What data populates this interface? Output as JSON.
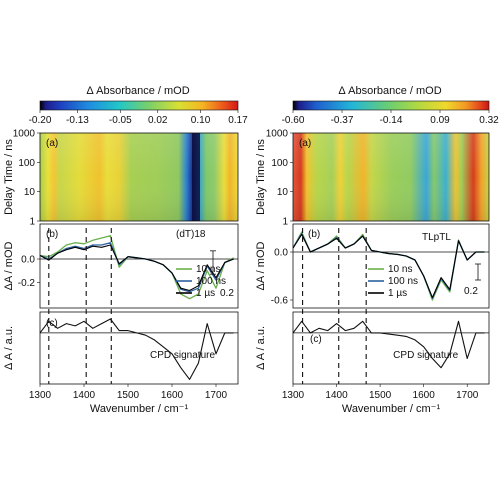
{
  "chart_data": [
    {
      "panel": "left",
      "type": "heatmap",
      "colorbar": {
        "label": "Δ Absorbance / mOD",
        "ticks": [
          "-0.20",
          "-0.13",
          "-0.05",
          "0.02",
          "0.10",
          "0.17"
        ],
        "range": [
          -0.2,
          0.17
        ]
      },
      "heatmap": {
        "label": "(a)",
        "ylabel": "Delay Time / ns",
        "yscale": "log",
        "ylim": [
          1,
          1000
        ],
        "yticks": [
          "1",
          "10",
          "100",
          "1000"
        ],
        "xlim": [
          1300,
          1750
        ]
      },
      "spectra": {
        "type": "line",
        "label": "(b)",
        "annotation": "(dT)18",
        "ylabel": "ΔA / mOD",
        "ylim": [
          -0.42,
          0.3
        ],
        "yticks": [
          "0.0",
          "-0.2"
        ],
        "scalebar": "0.2",
        "x": [
          1300,
          1320,
          1340,
          1360,
          1380,
          1400,
          1420,
          1440,
          1460,
          1480,
          1500,
          1520,
          1540,
          1560,
          1580,
          1600,
          1620,
          1640,
          1660,
          1680,
          1700,
          1720,
          1740
        ],
        "series": [
          {
            "name": "10 ns",
            "values": [
              0.03,
              0.02,
              0.06,
              0.12,
              0.14,
              0.13,
              0.16,
              0.18,
              0.2,
              -0.07,
              0.02,
              0.01,
              0.0,
              -0.02,
              -0.05,
              -0.12,
              -0.3,
              -0.34,
              -0.3,
              -0.1,
              -0.25,
              -0.03,
              0.01
            ]
          },
          {
            "name": "100 ns",
            "values": [
              0.03,
              0.0,
              0.05,
              0.09,
              0.11,
              0.09,
              0.12,
              0.12,
              0.14,
              -0.05,
              0.02,
              0.01,
              0.0,
              -0.02,
              -0.05,
              -0.12,
              -0.26,
              -0.28,
              -0.25,
              -0.06,
              -0.18,
              -0.03,
              0.0
            ]
          },
          {
            "name": "1 µs",
            "values": [
              0.03,
              -0.01,
              0.05,
              0.08,
              0.1,
              0.08,
              0.11,
              0.1,
              0.12,
              -0.04,
              0.02,
              0.01,
              0.0,
              -0.02,
              -0.05,
              -0.12,
              -0.25,
              -0.27,
              -0.23,
              -0.05,
              -0.16,
              -0.03,
              0.0
            ]
          }
        ]
      },
      "cpd": {
        "type": "line",
        "label": "(c)",
        "ylabel": "Δ A / a.u.",
        "annotation": "CPD signature",
        "x": [
          1300,
          1320,
          1340,
          1360,
          1380,
          1400,
          1420,
          1440,
          1460,
          1480,
          1500,
          1520,
          1540,
          1560,
          1580,
          1600,
          1620,
          1640,
          1660,
          1680,
          1700,
          1720,
          1740
        ],
        "values": [
          0.0,
          0.5,
          0.2,
          0.4,
          0.3,
          0.5,
          0.2,
          0.4,
          0.6,
          0.1,
          0.1,
          0.0,
          -0.1,
          -0.3,
          -0.6,
          -0.9,
          -1.5,
          -2.0,
          -1.3,
          0.4,
          -0.9,
          0.0,
          0.0
        ]
      },
      "xlabel": "Wavenumber / cm⁻¹",
      "xticks": [
        "1300",
        "1400",
        "1500",
        "1600",
        "1700"
      ],
      "dashed_lines_x": [
        1320,
        1405,
        1462
      ]
    },
    {
      "panel": "right",
      "type": "heatmap",
      "colorbar": {
        "label": "Δ Absorbance / mOD",
        "ticks": [
          "-0.60",
          "-0.37",
          "-0.14",
          "0.09",
          "0.32"
        ],
        "range": [
          -0.6,
          0.32
        ]
      },
      "heatmap": {
        "label": "(a)",
        "ylabel": "Delay Time / ns",
        "yscale": "log",
        "ylim": [
          1,
          1000
        ],
        "yticks": [
          "1",
          "10",
          "100",
          "1000"
        ],
        "xlim": [
          1300,
          1750
        ]
      },
      "spectra": {
        "type": "line",
        "label": "(b)",
        "annotation": "TLpTL",
        "ylabel": "ΔA / mOD",
        "ylim": [
          -0.7,
          0.35
        ],
        "yticks": [
          "0.0",
          "-0.6"
        ],
        "scalebar": "0.2",
        "x": [
          1300,
          1320,
          1340,
          1360,
          1380,
          1400,
          1420,
          1440,
          1460,
          1480,
          1500,
          1520,
          1540,
          1560,
          1580,
          1600,
          1620,
          1640,
          1660,
          1680,
          1700,
          1720,
          1740
        ],
        "series": [
          {
            "name": "10 ns",
            "values": [
              0.05,
              0.25,
              0.0,
              0.05,
              0.1,
              0.2,
              0.05,
              0.1,
              0.22,
              0.02,
              0.0,
              -0.02,
              -0.03,
              -0.05,
              -0.1,
              -0.3,
              -0.6,
              -0.35,
              -0.5,
              0.15,
              -0.1,
              0.0,
              0.0
            ]
          },
          {
            "name": "100 ns",
            "values": [
              0.05,
              0.23,
              0.0,
              0.05,
              0.1,
              0.18,
              0.05,
              0.1,
              0.2,
              0.02,
              0.0,
              -0.02,
              -0.03,
              -0.05,
              -0.1,
              -0.3,
              -0.58,
              -0.33,
              -0.48,
              0.14,
              -0.1,
              0.0,
              0.0
            ]
          },
          {
            "name": "1 µs",
            "values": [
              0.05,
              0.22,
              0.0,
              0.05,
              0.1,
              0.17,
              0.05,
              0.1,
              0.2,
              0.02,
              0.0,
              -0.02,
              -0.03,
              -0.05,
              -0.1,
              -0.3,
              -0.57,
              -0.32,
              -0.47,
              0.14,
              -0.1,
              0.0,
              0.0
            ]
          }
        ]
      },
      "cpd": {
        "type": "line",
        "label": "(c)",
        "ylabel": "Δ A / a.u.",
        "annotation": "CPD signature",
        "x": [
          1300,
          1320,
          1340,
          1360,
          1380,
          1400,
          1420,
          1440,
          1460,
          1480,
          1500,
          1520,
          1540,
          1560,
          1580,
          1600,
          1620,
          1640,
          1660,
          1680,
          1700,
          1720,
          1740
        ],
        "values": [
          0.0,
          0.5,
          0.0,
          0.2,
          0.1,
          0.4,
          0.1,
          0.2,
          0.5,
          0.0,
          0.0,
          -0.05,
          -0.1,
          -0.15,
          -0.3,
          -0.6,
          -1.1,
          -1.5,
          -0.9,
          0.5,
          -1.1,
          0.0,
          0.0
        ]
      },
      "xlabel": "Wavenumber / cm⁻¹",
      "xticks": [
        "1300",
        "1400",
        "1500",
        "1600",
        "1700"
      ],
      "dashed_lines_x": [
        1322,
        1405,
        1468
      ]
    }
  ],
  "colors": {
    "10ns": "#6ab04c",
    "100ns": "#2c5f9e",
    "1us": "#000000"
  }
}
